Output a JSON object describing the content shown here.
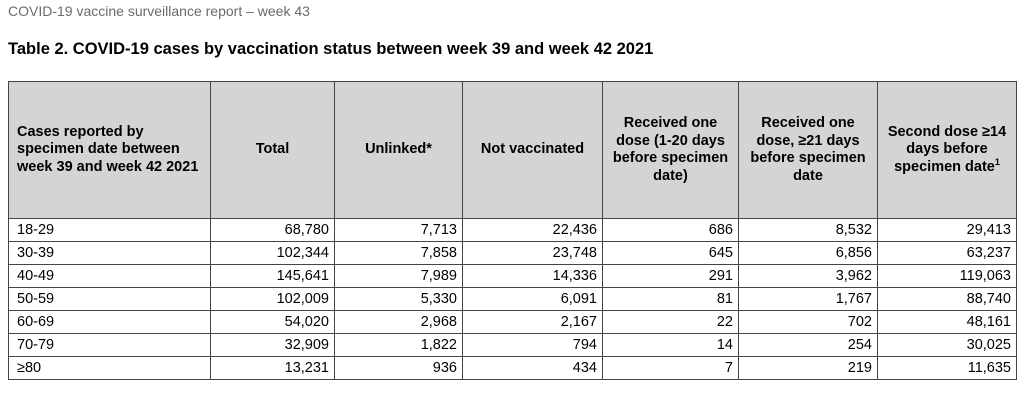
{
  "report": {
    "header": "COVID-19 vaccine surveillance report – week 43",
    "title": "Table 2. COVID-19 cases by vaccination status between week 39 and week 42 2021"
  },
  "table": {
    "headers": [
      "Cases reported by specimen date between week 39 and week 42 2021",
      "Total",
      "Unlinked*",
      "Not vaccinated",
      "Received one dose (1-20 days before specimen date)",
      "Received one dose, ≥21 days before specimen date",
      "Second dose ≥14 days before specimen date"
    ],
    "last_header_superscript": "1",
    "rows": [
      [
        "18-29",
        "68,780",
        "7,713",
        "22,436",
        "686",
        "8,532",
        "29,413"
      ],
      [
        "30-39",
        "102,344",
        "7,858",
        "23,748",
        "645",
        "6,856",
        "63,237"
      ],
      [
        "40-49",
        "145,641",
        "7,989",
        "14,336",
        "291",
        "3,962",
        "119,063"
      ],
      [
        "50-59",
        "102,009",
        "5,330",
        "6,091",
        "81",
        "1,767",
        "88,740"
      ],
      [
        "60-69",
        "54,020",
        "2,968",
        "2,167",
        "22",
        "702",
        "48,161"
      ],
      [
        "70-79",
        "32,909",
        "1,822",
        "794",
        "14",
        "254",
        "30,025"
      ],
      [
        "≥80",
        "13,231",
        "936",
        "434",
        "7",
        "219",
        "11,635"
      ]
    ]
  }
}
